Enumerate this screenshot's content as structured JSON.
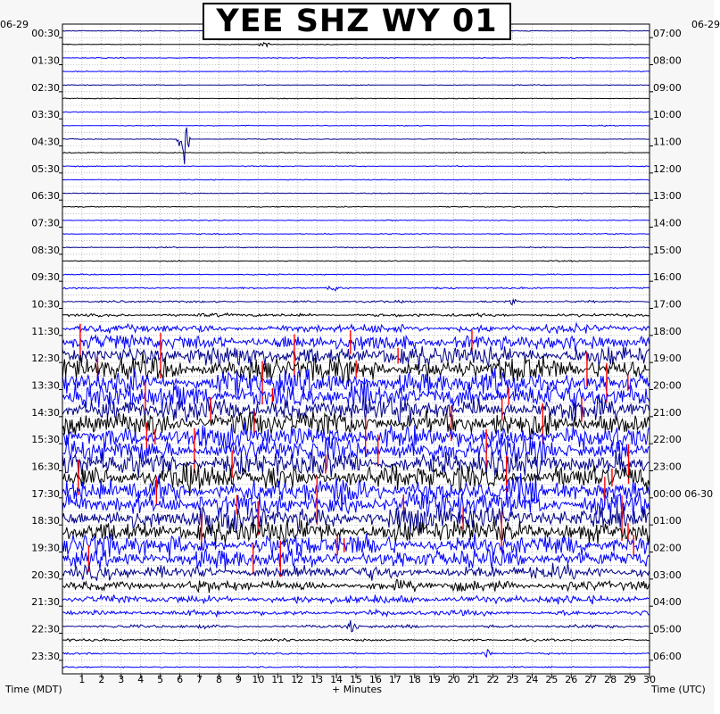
{
  "title": "YEE SHZ WY 01",
  "left_date": "06-29",
  "right_date": "06-29",
  "x_axis_label": "+ Minutes",
  "left_axis_label": "Time (MDT)",
  "right_axis_label": "Time (UTC)",
  "chart_data": {
    "type": "line",
    "subtype": "helicorder",
    "title": "YEE SHZ WY 01",
    "xlabel": "+ Minutes",
    "xlim": [
      0,
      30
    ],
    "x_ticks": [
      "1",
      "2",
      "3",
      "4",
      "5",
      "6",
      "7",
      "8",
      "9",
      "10",
      "11",
      "12",
      "13",
      "14",
      "15",
      "16",
      "17",
      "18",
      "19",
      "20",
      "21",
      "22",
      "23",
      "24",
      "25",
      "26",
      "27",
      "28",
      "29",
      "30"
    ],
    "left_ticks": [
      "00:30",
      "01:30",
      "02:30",
      "03:30",
      "04:30",
      "05:30",
      "06:30",
      "07:30",
      "08:30",
      "09:30",
      "10:30",
      "11:30",
      "12:30",
      "13:30",
      "14:30",
      "15:30",
      "16:30",
      "17:30",
      "18:30",
      "19:30",
      "20:30",
      "21:30",
      "22:30",
      "23:30"
    ],
    "right_ticks": [
      "07:00",
      "08:00",
      "09:00",
      "10:00",
      "11:00",
      "12:00",
      "13:00",
      "14:00",
      "15:00",
      "16:00",
      "17:00",
      "18:00",
      "19:00",
      "20:00",
      "21:00",
      "22:00",
      "23:00",
      "00:00 06-30",
      "01:00",
      "02:00",
      "03:00",
      "04:00",
      "05:00",
      "06:00"
    ],
    "trace_rows": 48,
    "trace_colors": [
      "#00008b",
      "#000000",
      "#ff0000",
      "#0000ff"
    ],
    "row_activity": [
      0.3,
      0.3,
      0.3,
      0.3,
      0.3,
      0.3,
      0.3,
      0.3,
      0.3,
      0.35,
      0.35,
      0.35,
      0.35,
      0.35,
      0.35,
      0.4,
      0.4,
      0.4,
      0.4,
      0.6,
      0.7,
      1.2,
      3,
      6,
      8,
      9,
      9,
      9,
      9,
      9,
      9,
      9,
      9,
      9,
      9,
      9,
      9,
      9,
      8,
      7,
      5,
      4,
      3,
      2,
      1.2,
      0.8,
      0.6,
      0.5
    ],
    "events": [
      {
        "row": 8,
        "minute": 6.2,
        "amplitude": 50
      },
      {
        "row": 1,
        "minute": 10.3,
        "amplitude": 6
      },
      {
        "row": 19,
        "minute": 13.8,
        "amplitude": 8
      },
      {
        "row": 20,
        "minute": 23.0,
        "amplitude": 7
      },
      {
        "row": 44,
        "minute": 14.8,
        "amplitude": 14
      },
      {
        "row": 46,
        "minute": 21.7,
        "amplitude": 12
      }
    ]
  }
}
